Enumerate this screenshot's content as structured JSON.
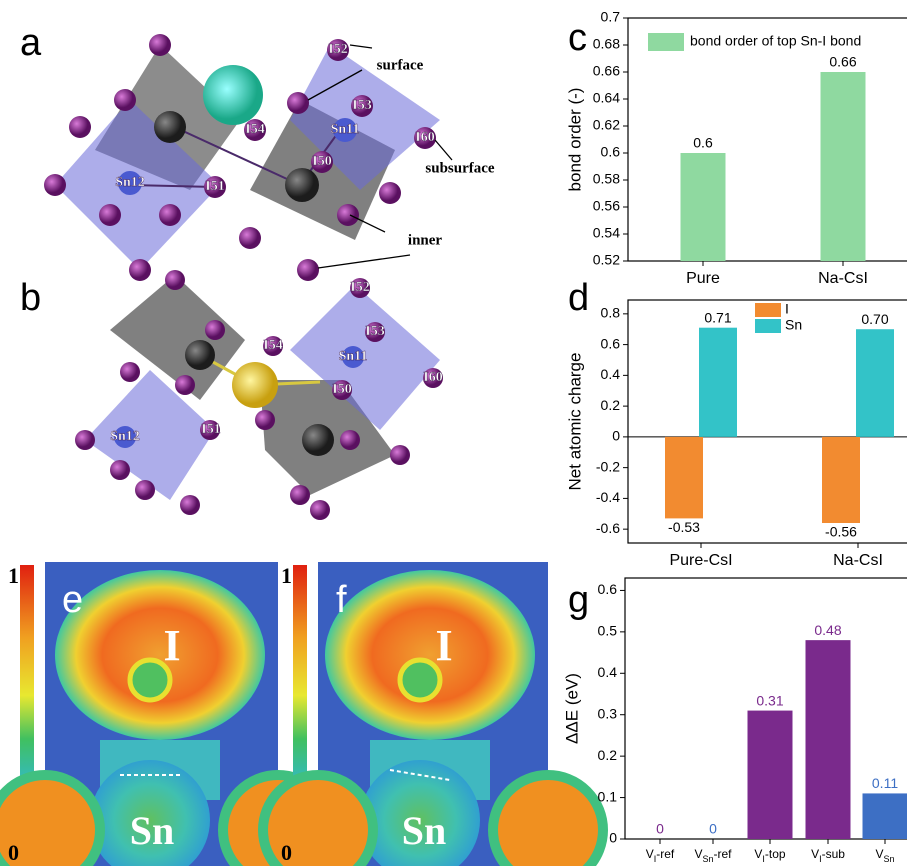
{
  "figure": {
    "panel_letters": [
      "a",
      "b",
      "c",
      "d",
      "e",
      "f",
      "g"
    ],
    "structure_a": {
      "labels": [
        "I52",
        "surface",
        "I53",
        "Sn11",
        "I54",
        "I60",
        "I50",
        "subsurface",
        "Sn12",
        "I51",
        "inner"
      ]
    },
    "structure_b": {
      "labels": [
        "I52",
        "I53",
        "I54",
        "Sn11",
        "I60",
        "I50",
        "Sn12",
        "I51"
      ]
    },
    "elf_maps": {
      "scale_max": "1",
      "scale_min": "0",
      "atom_top": "I",
      "atom_bottom": "Sn"
    }
  },
  "chart_data": [
    {
      "type": "bar",
      "y_label": "bond order (-)",
      "categories": [
        "Pure",
        "Na-CsI"
      ],
      "series": [
        {
          "name": "bond order of top Sn-I bond",
          "color": "#8fd9a0",
          "values": [
            0.6,
            0.66
          ]
        }
      ],
      "ylim": [
        0.52,
        0.7
      ],
      "yticks": [
        0.52,
        0.54,
        0.56,
        0.58,
        0.6,
        0.62,
        0.64,
        0.66,
        0.68,
        0.7
      ],
      "legend": "top"
    },
    {
      "type": "bar",
      "y_label": "Net atomic charge",
      "categories": [
        "Pure-CsI",
        "Na-CsI"
      ],
      "series": [
        {
          "name": "I",
          "color": "#f28b30",
          "values": [
            -0.53,
            -0.56
          ]
        },
        {
          "name": "Sn",
          "color": "#33c3c8",
          "values": [
            0.71,
            0.7
          ],
          "value_labels": [
            "0.71",
            "0.70"
          ]
        }
      ],
      "ylim": [
        -0.69,
        0.89
      ],
      "yticks": [
        -0.6,
        -0.4,
        -0.2,
        0,
        0.2,
        0.4,
        0.6,
        0.8
      ],
      "legend": "top"
    },
    {
      "type": "bar",
      "y_label": "ΔΔE (eV)",
      "categories": [
        [
          "V",
          "I",
          "-ref"
        ],
        [
          "V",
          "Sn",
          "-ref"
        ],
        [
          "V",
          "I",
          "-top"
        ],
        [
          "V",
          "I",
          "-sub"
        ],
        [
          "V",
          "Sn"
        ]
      ],
      "series": [
        {
          "colors": [
            "#7a2a8c",
            "#3d6fc4",
            "#7a2a8c",
            "#7a2a8c",
            "#3d6fc4"
          ],
          "values": [
            0,
            0,
            0.31,
            0.48,
            0.11
          ]
        }
      ],
      "ylim": [
        0,
        0.63
      ],
      "yticks": [
        0,
        0.1,
        0.2,
        0.3,
        0.4,
        0.5,
        0.6
      ]
    }
  ]
}
